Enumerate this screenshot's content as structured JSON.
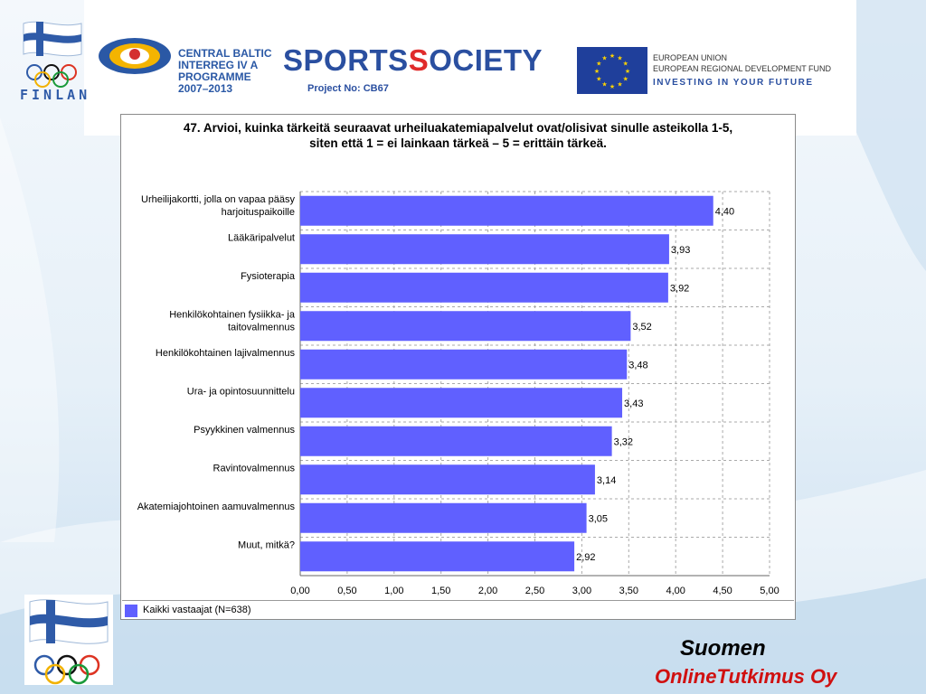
{
  "header": {
    "finland_logo_text": "FINLAN",
    "central_baltic": {
      "line1": "CENTRAL BALTIC",
      "line2": "INTERREG IV A",
      "line3": "PROGRAMME",
      "line4": "2007–2013"
    },
    "sportssociety": {
      "part1": "SPORTS",
      "part2": "S",
      "part3": "OCIETY",
      "project": "Project No: CB67"
    },
    "eu": {
      "line1": "EUROPEAN UNION",
      "line2": "EUROPEAN REGIONAL DEVELOPMENT FUND",
      "line3": "INVESTING IN YOUR FUTURE"
    }
  },
  "colors": {
    "bar": "#6060ff",
    "grid": "#aaaaaa",
    "brand_red": "#d01010",
    "logo_blue": "#2f5ba8"
  },
  "chart_data": {
    "type": "bar",
    "orientation": "horizontal",
    "title_line1": "47. Arvioi, kuinka tärkeitä seuraavat urheiluakatemiapalvelut ovat/olisivat sinulle asteikolla 1-5,",
    "title_line2": "siten että 1 = ei lainkaan tärkeä – 5 = erittäin tärkeä.",
    "categories": [
      [
        "Urheilijakortti, jolla on vapaa pääsy",
        "harjoituspaikoille"
      ],
      [
        "Lääkäripalvelut"
      ],
      [
        "Fysioterapia"
      ],
      [
        "Henkilökohtainen fysiikka- ja",
        "taitovalmennus"
      ],
      [
        "Henkilökohtainen lajivalmennus"
      ],
      [
        "Ura- ja opintosuunnittelu"
      ],
      [
        "Psyykkinen valmennus"
      ],
      [
        "Ravintovalmennus"
      ],
      [
        "Akatemiajohtoinen aamuvalmennus"
      ],
      [
        "Muut, mitkä?"
      ]
    ],
    "series": [
      {
        "name": "Kaikki vastaajat (N=638)",
        "values": [
          4.4,
          3.93,
          3.92,
          3.52,
          3.48,
          3.43,
          3.32,
          3.14,
          3.05,
          2.92
        ],
        "labels": [
          "4,40",
          "3,93",
          "3,92",
          "3,52",
          "3,48",
          "3,43",
          "3,32",
          "3,14",
          "3,05",
          "2,92"
        ]
      }
    ],
    "xlim": [
      0,
      5
    ],
    "x_ticks": [
      "0,00",
      "0,50",
      "1,00",
      "1,50",
      "2,00",
      "2,50",
      "3,00",
      "3,50",
      "4,00",
      "4,50",
      "5,00"
    ],
    "grid": true,
    "legend_position": "bottom-left"
  },
  "footer": {
    "brand_line1": "Suomen",
    "brand_line2": "OnlineTutkimus Oy"
  }
}
